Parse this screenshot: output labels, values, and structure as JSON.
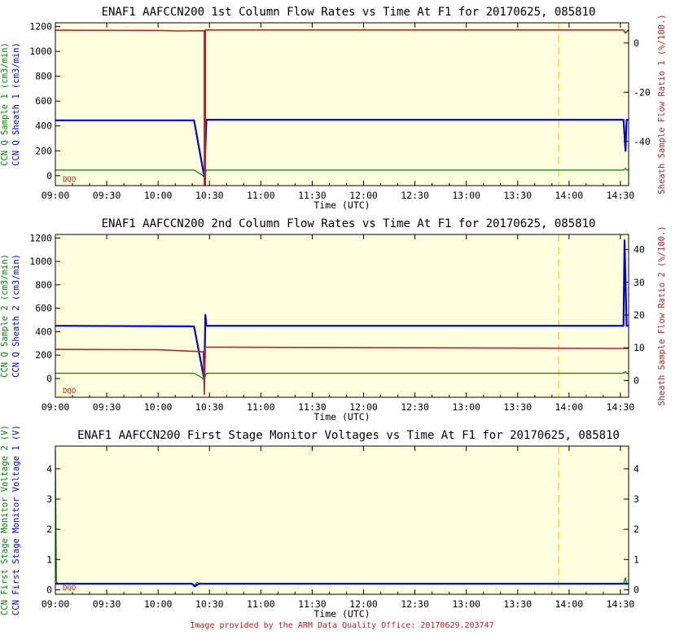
{
  "footer": "Image provided by the ARM Data Quality Office: 20170629.203747",
  "colors": {
    "plot_bg": "#ffffe0",
    "green": "#008000",
    "blue": "#0000cd",
    "red": "#a52a2a",
    "marker": "#ffd700",
    "footer": "#b22222"
  },
  "chart_data": [
    {
      "type": "line",
      "title": "ENAF1 AAFCCN200 1st Column Flow Rates vs Time At F1 for 20170625, 085810",
      "xlabel": "Time (UTC)",
      "xticks": [
        "09:00",
        "09:30",
        "10:00",
        "10:30",
        "11:00",
        "11:30",
        "12:00",
        "12:30",
        "13:00",
        "13:30",
        "14:00",
        "14:30"
      ],
      "xlim_hours": [
        9.0,
        14.58
      ],
      "ylim_left": [
        -80,
        1230
      ],
      "yticks_left": [
        0,
        200,
        400,
        600,
        800,
        1000,
        1200
      ],
      "ylabel_left_1": "CCN Q Sample 1 (cm3/min)",
      "ylabel_left_2": "CCN Q Sheath 1 (cm3/min)",
      "ylim_right": [
        -57.9,
        8.2
      ],
      "yticks_right": [
        -40,
        -20,
        0
      ],
      "ylabel_right": "Sheath Sample Flow Ratio 1 (%/100.)",
      "flag_label": "DQO",
      "marker_time": "13:54",
      "series": [
        {
          "name": "CCN Q Sample 1 (cm3/min)",
          "color": "green",
          "axis": "left",
          "points": [
            [
              9.0,
              45
            ],
            [
              10.35,
              45
            ],
            [
              10.42,
              10
            ],
            [
              10.45,
              -10
            ],
            [
              10.47,
              45
            ],
            [
              14.53,
              45
            ],
            [
              14.55,
              60
            ],
            [
              14.56,
              45
            ],
            [
              14.58,
              45
            ]
          ]
        },
        {
          "name": "CCN Q Sheath 1 (cm3/min)",
          "color": "blue",
          "axis": "left",
          "points": [
            [
              9.0,
              445
            ],
            [
              10.35,
              445
            ],
            [
              10.45,
              -10
            ],
            [
              10.47,
              450
            ],
            [
              14.53,
              450
            ],
            [
              14.55,
              200
            ],
            [
              14.56,
              450
            ],
            [
              14.58,
              450
            ]
          ]
        },
        {
          "name": "Sheath Sample Flow Ratio 1 (%/100.)",
          "color": "red",
          "axis": "right",
          "points": [
            [
              9.0,
              5.2
            ],
            [
              10.0,
              5.1
            ],
            [
              10.2,
              4.9
            ],
            [
              10.45,
              5.0
            ],
            [
              10.45,
              -57.5
            ],
            [
              10.46,
              -57.5
            ],
            [
              10.46,
              5.3
            ],
            [
              14.53,
              5.3
            ],
            [
              14.55,
              4.0
            ],
            [
              14.58,
              5.3
            ]
          ]
        }
      ]
    },
    {
      "type": "line",
      "title": "ENAF1 AAFCCN200 2nd Column Flow Rates vs Time At F1 for 20170625, 085810",
      "xlabel": "Time (UTC)",
      "xticks": [
        "09:00",
        "09:30",
        "10:00",
        "10:30",
        "11:00",
        "11:30",
        "12:00",
        "12:30",
        "13:00",
        "13:30",
        "14:00",
        "14:30"
      ],
      "xlim_hours": [
        9.0,
        14.58
      ],
      "ylim_left": [
        -160,
        1230
      ],
      "yticks_left": [
        0,
        200,
        400,
        600,
        800,
        1000,
        1200
      ],
      "ylabel_left_1": "CCN Q Sample 2 (cm3/min)",
      "ylabel_left_2": "CCN Q Sheath 2 (cm3/min)",
      "ylim_right": [
        -5.1,
        44.6
      ],
      "yticks_right": [
        0,
        10,
        20,
        30,
        40
      ],
      "ylabel_right": "Sheath Sample Flow Ratio 2 (%/100.)",
      "flag_label": "DQO",
      "marker_time": "13:54",
      "series": [
        {
          "name": "CCN Q Sample 2 (cm3/min)",
          "color": "green",
          "axis": "left",
          "points": [
            [
              9.0,
              45
            ],
            [
              10.35,
              45
            ],
            [
              10.42,
              10
            ],
            [
              10.45,
              -10
            ],
            [
              10.47,
              45
            ],
            [
              14.53,
              45
            ],
            [
              14.55,
              60
            ],
            [
              14.56,
              45
            ],
            [
              14.58,
              45
            ]
          ]
        },
        {
          "name": "CCN Q Sheath 2 (cm3/min)",
          "color": "blue",
          "axis": "left",
          "points": [
            [
              9.0,
              450
            ],
            [
              10.35,
              445
            ],
            [
              10.45,
              -10
            ],
            [
              10.46,
              545
            ],
            [
              10.47,
              450
            ],
            [
              14.53,
              450
            ],
            [
              14.54,
              1180
            ],
            [
              14.56,
              450
            ],
            [
              14.58,
              450
            ]
          ]
        },
        {
          "name": "Sheath Sample Flow Ratio 2 (%/100.)",
          "color": "red",
          "axis": "right",
          "points": [
            [
              9.0,
              9.5
            ],
            [
              10.0,
              9.4
            ],
            [
              10.3,
              9.0
            ],
            [
              10.44,
              8.8
            ],
            [
              10.45,
              -4.2
            ],
            [
              10.46,
              10.2
            ],
            [
              14.53,
              9.8
            ],
            [
              14.58,
              9.8
            ]
          ]
        }
      ]
    },
    {
      "type": "line",
      "title": "ENAF1 AAFCCN200 First Stage Monitor Voltages vs Time At F1 for 20170625, 085810",
      "xlabel": "Time (UTC)",
      "xticks": [
        "09:00",
        "09:30",
        "10:00",
        "10:30",
        "11:00",
        "11:30",
        "12:00",
        "12:30",
        "13:00",
        "13:30",
        "14:00",
        "14:30"
      ],
      "xlim_hours": [
        9.0,
        14.58
      ],
      "ylim_left": [
        -0.15,
        4.75
      ],
      "yticks_left": [
        0,
        1,
        2,
        3,
        4
      ],
      "ylabel_left_1": "CCN First Stage Monitor Voltage 2 (V)",
      "ylabel_left_2": "CCN First Stage Monitor Voltage 1 (V)",
      "ylim_right": [
        -0.15,
        4.75
      ],
      "yticks_right": [
        0,
        1,
        2,
        3,
        4
      ],
      "ylabel_right": "",
      "flag_label": "DQO",
      "marker_time": "13:54",
      "series": [
        {
          "name": "CCN First Stage Monitor Voltage 2 (V)",
          "color": "green",
          "axis": "left",
          "points": [
            [
              9.0,
              4.6
            ],
            [
              9.01,
              0.3
            ],
            [
              9.02,
              0.2
            ],
            [
              10.33,
              0.2
            ],
            [
              10.35,
              0.1
            ],
            [
              10.38,
              0.25
            ],
            [
              10.4,
              0.2
            ],
            [
              14.53,
              0.2
            ],
            [
              14.55,
              0.4
            ],
            [
              14.56,
              0.2
            ],
            [
              14.58,
              0.2
            ]
          ]
        },
        {
          "name": "CCN First Stage Monitor Voltage 1 (V)",
          "color": "blue",
          "axis": "left",
          "points": [
            [
              9.0,
              0.2
            ],
            [
              10.33,
              0.2
            ],
            [
              10.36,
              0.12
            ],
            [
              10.4,
              0.2
            ],
            [
              14.58,
              0.2
            ]
          ]
        }
      ]
    }
  ]
}
